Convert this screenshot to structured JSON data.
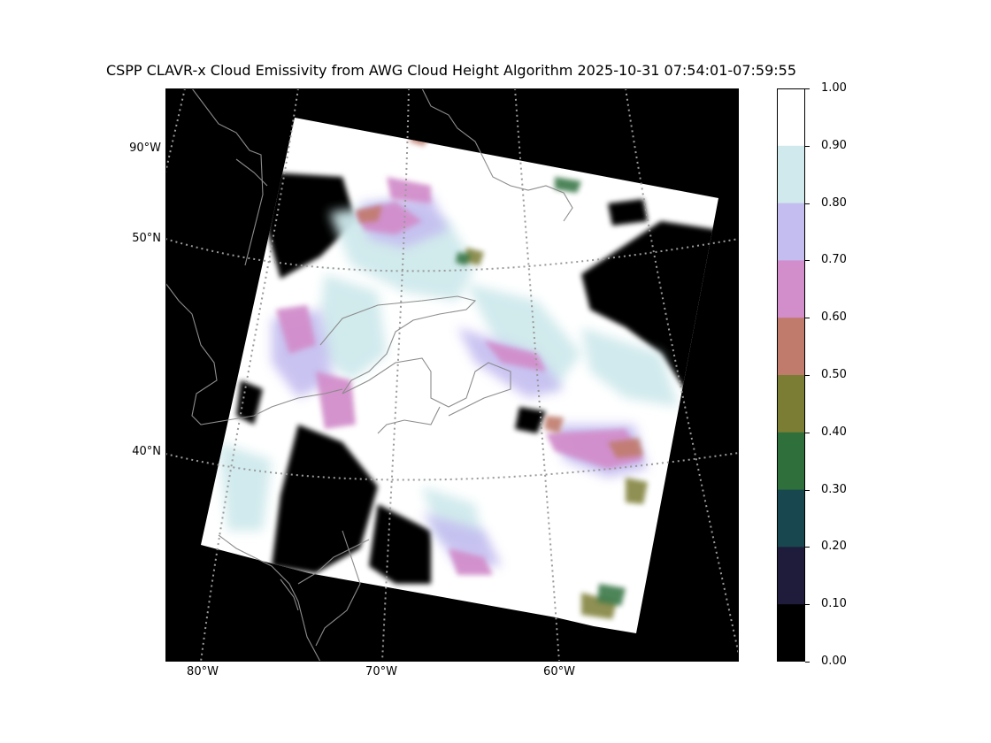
{
  "title": "CSPP CLAVR-x Cloud Emissivity from AWG Cloud Height Algorithm 2025-10-31 07:54:01-07:59:55",
  "map": {
    "lat_labels": [
      "90°W",
      "50°N",
      "40°N"
    ],
    "lon_labels": [
      "80°W",
      "70°W",
      "60°W"
    ],
    "background_color": "#000000",
    "coastline_color": "#8c8c8c",
    "graticule_color": "#9a9a9a"
  },
  "colorbar": {
    "tick_labels": [
      "1.00",
      "0.90",
      "0.80",
      "0.70",
      "0.60",
      "0.50",
      "0.40",
      "0.30",
      "0.20",
      "0.10",
      "0.00"
    ],
    "bins": [
      {
        "range": "0.90-1.00",
        "color": "#ffffff"
      },
      {
        "range": "0.80-0.90",
        "color": "#cfe9ec"
      },
      {
        "range": "0.70-0.80",
        "color": "#c4bdf0"
      },
      {
        "range": "0.60-0.70",
        "color": "#d28ecb"
      },
      {
        "range": "0.50-0.60",
        "color": "#c07b6c"
      },
      {
        "range": "0.40-0.50",
        "color": "#7c7d34"
      },
      {
        "range": "0.30-0.40",
        "color": "#2e6f3c"
      },
      {
        "range": "0.20-0.30",
        "color": "#18474f"
      },
      {
        "range": "0.10-0.20",
        "color": "#1e1b3b"
      },
      {
        "range": "0.00-0.10",
        "color": "#000000"
      }
    ]
  }
}
